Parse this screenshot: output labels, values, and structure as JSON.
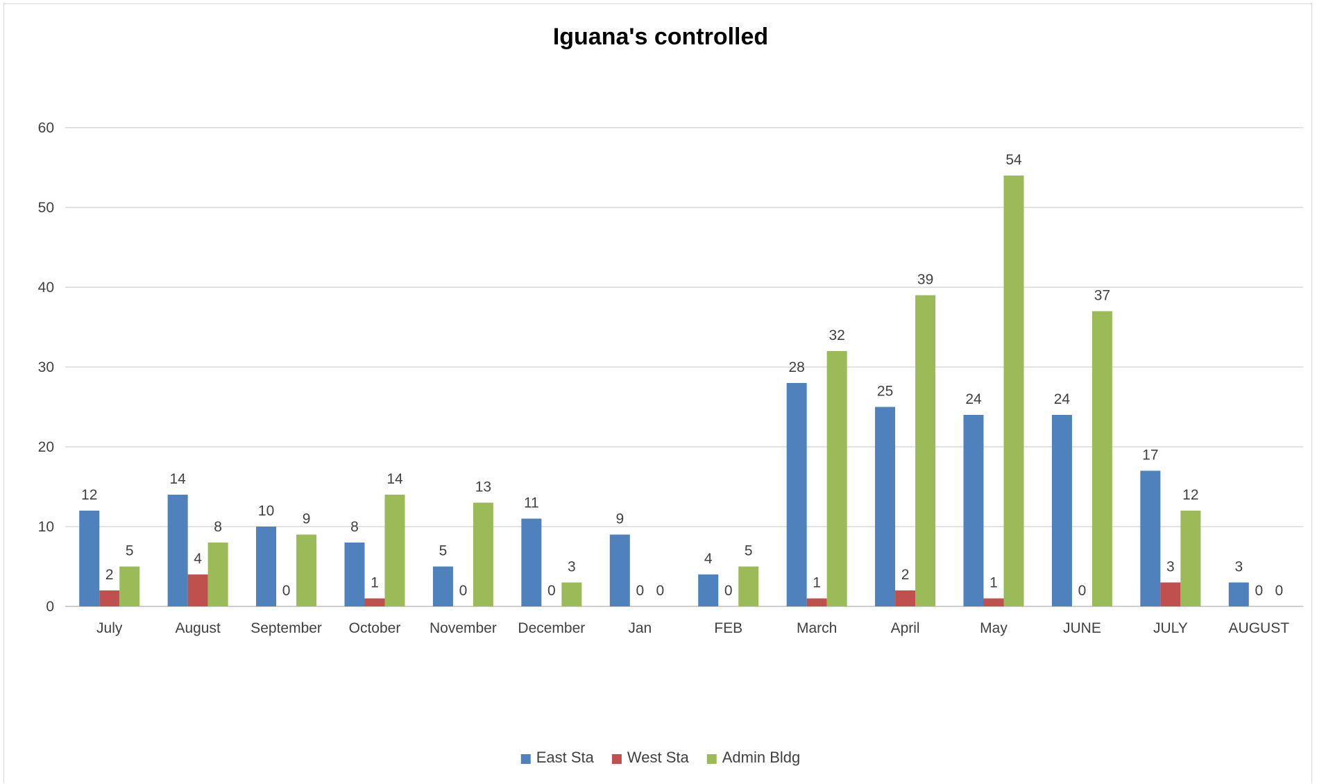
{
  "chart_data": {
    "type": "bar",
    "title": "Iguana's controlled",
    "xlabel": "",
    "ylabel": "",
    "ylim": [
      0,
      60
    ],
    "yticks": [
      0,
      10,
      20,
      30,
      40,
      50,
      60
    ],
    "grid": true,
    "legend_position": "bottom",
    "categories": [
      "July",
      "August",
      "September",
      "October",
      "November",
      "December",
      "Jan",
      "FEB",
      "March",
      "April",
      "May",
      "JUNE",
      "JULY",
      "AUGUST"
    ],
    "series": [
      {
        "name": "East Sta",
        "color": "#4f81bd",
        "values": [
          12,
          14,
          10,
          8,
          5,
          11,
          9,
          4,
          28,
          25,
          24,
          24,
          17,
          3
        ]
      },
      {
        "name": "West Sta",
        "color": "#c0504d",
        "values": [
          2,
          4,
          0,
          1,
          0,
          0,
          0,
          0,
          1,
          2,
          1,
          0,
          3,
          0
        ]
      },
      {
        "name": "Admin Bldg",
        "color": "#9bbb59",
        "values": [
          5,
          8,
          9,
          14,
          13,
          3,
          0,
          5,
          32,
          39,
          54,
          37,
          12,
          0
        ]
      }
    ],
    "data_labels": [
      [
        "12",
        "14",
        "10",
        "8",
        "5",
        "11",
        "9",
        "4",
        "28",
        "25",
        "24",
        "24",
        "17",
        "3"
      ],
      [
        "2",
        "4",
        "0",
        "1",
        "0",
        "0",
        "0",
        "0",
        "1",
        "2",
        "1",
        "0",
        "3",
        "0"
      ],
      [
        "5",
        "8",
        "9",
        "14",
        "13",
        "3",
        "0",
        "5",
        "32",
        "39",
        "54",
        "37",
        "12",
        "0"
      ]
    ]
  }
}
